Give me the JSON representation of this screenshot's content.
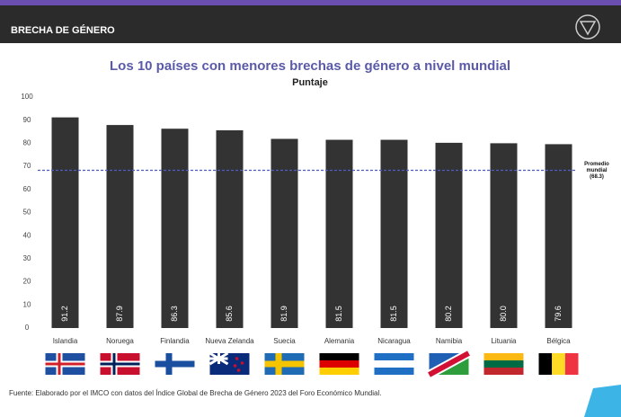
{
  "header": {
    "title": "BRECHA DE GÉNERO"
  },
  "chart_data": {
    "type": "bar",
    "title": "Los 10 países con menores brechas de género a nivel mundial",
    "subtitle": "Puntaje",
    "categories": [
      "Islandia",
      "Noruega",
      "Finlandia",
      "Nueva Zelanda",
      "Suecia",
      "Alemania",
      "Nicaragua",
      "Namibia",
      "Lituania",
      "Bélgica"
    ],
    "values": [
      91.2,
      87.9,
      86.3,
      85.6,
      81.9,
      81.5,
      81.5,
      80.2,
      80.0,
      79.6
    ],
    "value_labels": [
      "91.2",
      "87.9",
      "86.3",
      "85.6",
      "81.9",
      "81.5",
      "81.5",
      "80.2",
      "80.0",
      "79.6"
    ],
    "color": "#333333",
    "ylim": [
      0,
      100
    ],
    "yticks": [
      0,
      10,
      20,
      30,
      40,
      50,
      60,
      70,
      80,
      90,
      100
    ],
    "reference_line": {
      "value": 68.3,
      "label": [
        "Promedio",
        "mundial",
        "(68.3)"
      ],
      "color": "#4b5cc4"
    }
  },
  "source": "Fuente: Elaborado por el IMCO con datos del Índice Global de Brecha de Género 2023 del Foro Económico Mundial."
}
